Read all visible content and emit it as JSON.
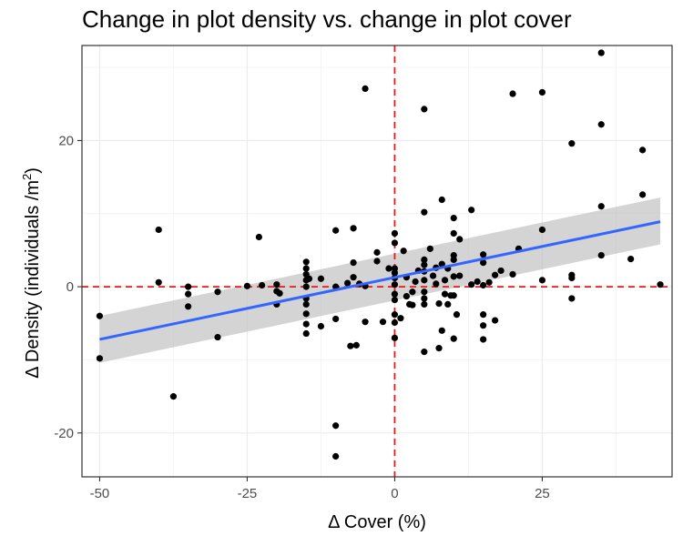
{
  "chart_data": {
    "type": "scatter",
    "title": "Change in plot density vs. change in plot cover",
    "xlabel": "Δ Cover (%)",
    "ylabel_main": "Δ Density (individuals /m",
    "ylabel_sup": "2",
    "ylabel_close": ")",
    "xlim": [
      -53,
      47
    ],
    "ylim": [
      -26,
      33
    ],
    "xticks": [
      -50,
      -25,
      0,
      25
    ],
    "xtick_labels": [
      "-50",
      "-25",
      "0",
      "25"
    ],
    "yticks": [
      -20,
      0,
      20
    ],
    "ytick_labels": [
      "-20",
      "0",
      "20"
    ],
    "grid": true,
    "reference_lines": {
      "x": 0,
      "y": 0,
      "color": "#e41a1c",
      "style": "dashed"
    },
    "regression": {
      "x": [
        -50,
        45
      ],
      "y": [
        -7.2,
        8.9
      ],
      "ci_lower": [
        -10.4,
        5.8
      ],
      "ci_upper": [
        -4.0,
        12.2
      ],
      "color": "#3366ff",
      "band_color": "#bdbdbd"
    },
    "points": [
      [
        -50,
        -4
      ],
      [
        -50,
        -9.8
      ],
      [
        -40,
        7.8
      ],
      [
        -40,
        0.6
      ],
      [
        -37.5,
        -15
      ],
      [
        -35,
        0
      ],
      [
        -35,
        -1
      ],
      [
        -35,
        -2.7
      ],
      [
        -30,
        -0.7
      ],
      [
        -30,
        -6.9
      ],
      [
        -25,
        0.1
      ],
      [
        -23,
        6.8
      ],
      [
        -22.5,
        0.2
      ],
      [
        -20,
        0.3
      ],
      [
        -20,
        -0.6
      ],
      [
        -20,
        -2.4
      ],
      [
        -19.5,
        -0.9
      ],
      [
        -15,
        3.4
      ],
      [
        -15,
        2.5
      ],
      [
        -15,
        1.7
      ],
      [
        -15,
        0.9
      ],
      [
        -15,
        0
      ],
      [
        -15,
        -1.6
      ],
      [
        -15,
        -2.4
      ],
      [
        -15,
        -3.7
      ],
      [
        -15,
        -5.1
      ],
      [
        -15,
        -6.4
      ],
      [
        -14.5,
        1.1
      ],
      [
        -12.5,
        1.1
      ],
      [
        -12.5,
        -5.4
      ],
      [
        -10,
        7.7
      ],
      [
        -10,
        0
      ],
      [
        -10,
        -4.4
      ],
      [
        -10,
        -19
      ],
      [
        -10,
        -23.2
      ],
      [
        -8,
        0.5
      ],
      [
        -7.5,
        -8.1
      ],
      [
        -7,
        3.3
      ],
      [
        -7,
        1.3
      ],
      [
        -7,
        8
      ],
      [
        -6.5,
        -8
      ],
      [
        -6,
        0.4
      ],
      [
        -5,
        27.1
      ],
      [
        -5,
        0.1
      ],
      [
        -5,
        -4.8
      ],
      [
        -3,
        4.7
      ],
      [
        -3,
        3.5
      ],
      [
        -2,
        -4.8
      ],
      [
        -1,
        2.5
      ],
      [
        0,
        7.3
      ],
      [
        0,
        6
      ],
      [
        0,
        2.5
      ],
      [
        0,
        1.9
      ],
      [
        0,
        1.2
      ],
      [
        0,
        0.3
      ],
      [
        0,
        -1
      ],
      [
        0,
        -1.8
      ],
      [
        0,
        -3.8
      ],
      [
        0,
        -4.9
      ],
      [
        0,
        -7
      ],
      [
        1,
        -4.3
      ],
      [
        1.5,
        4.9
      ],
      [
        2,
        1.3
      ],
      [
        2,
        -1.3
      ],
      [
        2.5,
        -2.4
      ],
      [
        3,
        -2.5
      ],
      [
        3,
        -0.7
      ],
      [
        3.5,
        0.7
      ],
      [
        4,
        2.2
      ],
      [
        5,
        24.3
      ],
      [
        5,
        10.2
      ],
      [
        5,
        3.7
      ],
      [
        5,
        3
      ],
      [
        5,
        2.1
      ],
      [
        5,
        0.9
      ],
      [
        5,
        -0.7
      ],
      [
        5,
        -1.6
      ],
      [
        5,
        -2.4
      ],
      [
        5,
        -8.9
      ],
      [
        6,
        5.2
      ],
      [
        6.5,
        1.5
      ],
      [
        7,
        2.6
      ],
      [
        7,
        0.4
      ],
      [
        7.5,
        -2.3
      ],
      [
        7.5,
        -8.4
      ],
      [
        8,
        11.9
      ],
      [
        8,
        3.1
      ],
      [
        8,
        -6
      ],
      [
        8.5,
        0.9
      ],
      [
        8.5,
        -1
      ],
      [
        9,
        2.5
      ],
      [
        9,
        -2.4
      ],
      [
        9.5,
        -1.2
      ],
      [
        10,
        9.4
      ],
      [
        10,
        7.3
      ],
      [
        10,
        4.3
      ],
      [
        10,
        3.7
      ],
      [
        10,
        1.4
      ],
      [
        10,
        -1.2
      ],
      [
        10,
        -7.1
      ],
      [
        10.5,
        -3.8
      ],
      [
        11,
        6.5
      ],
      [
        11,
        1.5
      ],
      [
        13,
        10.5
      ],
      [
        13,
        0.3
      ],
      [
        14,
        0.7
      ],
      [
        15,
        4.4
      ],
      [
        15,
        3.3
      ],
      [
        15,
        0.2
      ],
      [
        15,
        -3.8
      ],
      [
        15,
        -5.3
      ],
      [
        15,
        -7.2
      ],
      [
        16,
        0.6
      ],
      [
        17,
        -4.6
      ],
      [
        17,
        1.6
      ],
      [
        18,
        2.2
      ],
      [
        20,
        26.4
      ],
      [
        20,
        1.7
      ],
      [
        21,
        5.2
      ],
      [
        25,
        26.6
      ],
      [
        25,
        7.8
      ],
      [
        25,
        0.9
      ],
      [
        30,
        19.6
      ],
      [
        30,
        1.6
      ],
      [
        30,
        1.2
      ],
      [
        30,
        -1.6
      ],
      [
        35,
        32
      ],
      [
        35,
        22.2
      ],
      [
        35,
        11
      ],
      [
        35,
        4.3
      ],
      [
        40,
        3.8
      ],
      [
        42,
        18.7
      ],
      [
        42,
        12.6
      ],
      [
        45,
        0.3
      ]
    ]
  }
}
